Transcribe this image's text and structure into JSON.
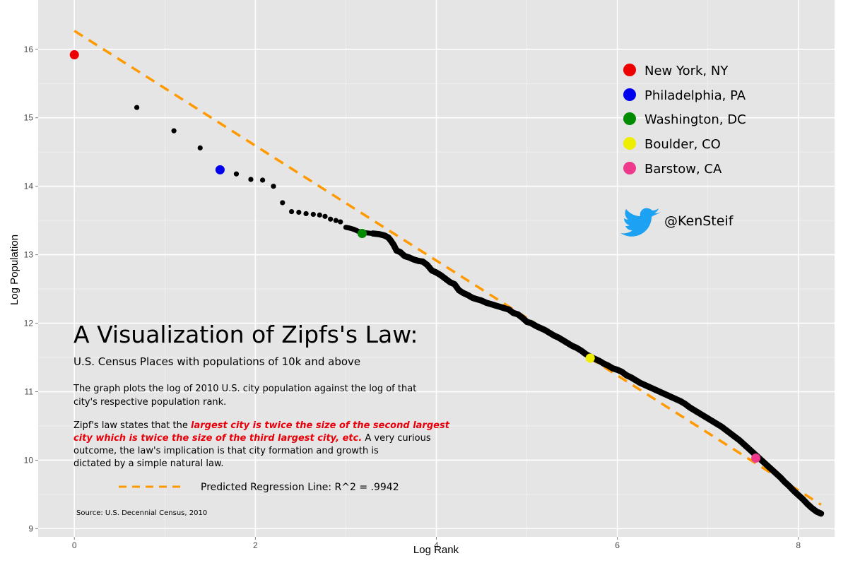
{
  "chart_data": {
    "type": "scatter",
    "xlabel": "Log Rank",
    "ylabel": "Log Population",
    "xlim": [
      -0.4,
      8.4
    ],
    "ylim": [
      8.88,
      16.72
    ],
    "x_ticks": [
      0,
      2,
      4,
      6,
      8
    ],
    "y_ticks": [
      9,
      10,
      11,
      12,
      13,
      14,
      15,
      16
    ],
    "grid": true,
    "background": "#e5e5e5",
    "point_color": "#000000",
    "regression": {
      "label": "Predicted Regression Line: R^2 = .9942",
      "color": "#ff9900",
      "style": "dashed",
      "x": [
        0,
        8.25
      ],
      "y": [
        16.27,
        9.35
      ]
    },
    "points": [
      [
        0.69,
        15.15
      ],
      [
        1.1,
        14.81
      ],
      [
        1.39,
        14.56
      ],
      [
        1.79,
        14.18
      ],
      [
        1.95,
        14.1
      ],
      [
        2.08,
        14.09
      ],
      [
        2.2,
        14.0
      ],
      [
        2.3,
        13.76
      ],
      [
        2.4,
        13.63
      ],
      [
        2.48,
        13.62
      ],
      [
        2.56,
        13.6
      ],
      [
        2.64,
        13.59
      ],
      [
        2.71,
        13.58
      ],
      [
        2.77,
        13.56
      ],
      [
        2.83,
        13.52
      ],
      [
        2.89,
        13.5
      ],
      [
        2.94,
        13.48
      ],
      [
        3.0,
        13.4
      ],
      [
        3.04,
        13.39
      ],
      [
        3.09,
        13.37
      ],
      [
        3.14,
        13.34
      ],
      [
        3.22,
        13.32
      ],
      [
        3.3,
        13.31
      ],
      [
        3.37,
        13.3
      ],
      [
        3.43,
        13.28
      ],
      [
        3.47,
        13.25
      ],
      [
        3.5,
        13.2
      ],
      [
        3.53,
        13.14
      ],
      [
        3.56,
        13.06
      ],
      [
        3.6,
        13.04
      ],
      [
        3.65,
        12.98
      ],
      [
        3.7,
        12.96
      ],
      [
        3.75,
        12.93
      ],
      [
        3.8,
        12.91
      ],
      [
        3.85,
        12.9
      ],
      [
        3.9,
        12.85
      ],
      [
        3.95,
        12.77
      ],
      [
        4.0,
        12.74
      ],
      [
        4.05,
        12.7
      ],
      [
        4.1,
        12.65
      ],
      [
        4.15,
        12.6
      ],
      [
        4.2,
        12.57
      ],
      [
        4.25,
        12.48
      ],
      [
        4.3,
        12.44
      ],
      [
        4.35,
        12.41
      ],
      [
        4.4,
        12.37
      ],
      [
        4.45,
        12.35
      ],
      [
        4.5,
        12.33
      ],
      [
        4.55,
        12.3
      ],
      [
        4.6,
        12.28
      ],
      [
        4.65,
        12.26
      ],
      [
        4.7,
        12.24
      ],
      [
        4.75,
        12.22
      ],
      [
        4.8,
        12.2
      ],
      [
        4.85,
        12.15
      ],
      [
        4.9,
        12.13
      ],
      [
        4.95,
        12.08
      ],
      [
        5.0,
        12.02
      ],
      [
        5.05,
        12.0
      ],
      [
        5.1,
        11.96
      ],
      [
        5.15,
        11.93
      ],
      [
        5.2,
        11.9
      ],
      [
        5.25,
        11.86
      ],
      [
        5.3,
        11.82
      ],
      [
        5.35,
        11.79
      ],
      [
        5.4,
        11.75
      ],
      [
        5.45,
        11.71
      ],
      [
        5.5,
        11.67
      ],
      [
        5.55,
        11.64
      ],
      [
        5.6,
        11.6
      ],
      [
        5.65,
        11.55
      ],
      [
        5.75,
        11.48
      ],
      [
        5.8,
        11.45
      ],
      [
        5.85,
        11.41
      ],
      [
        5.9,
        11.38
      ],
      [
        5.95,
        11.34
      ],
      [
        6.0,
        11.32
      ],
      [
        6.05,
        11.29
      ],
      [
        6.1,
        11.24
      ],
      [
        6.15,
        11.21
      ],
      [
        6.2,
        11.17
      ],
      [
        6.25,
        11.13
      ],
      [
        6.3,
        11.1
      ],
      [
        6.35,
        11.07
      ],
      [
        6.4,
        11.04
      ],
      [
        6.45,
        11.01
      ],
      [
        6.5,
        10.98
      ],
      [
        6.55,
        10.95
      ],
      [
        6.6,
        10.92
      ],
      [
        6.65,
        10.89
      ],
      [
        6.7,
        10.86
      ],
      [
        6.75,
        10.82
      ],
      [
        6.8,
        10.77
      ],
      [
        6.85,
        10.73
      ],
      [
        6.9,
        10.69
      ],
      [
        6.95,
        10.65
      ],
      [
        7.0,
        10.61
      ],
      [
        7.05,
        10.57
      ],
      [
        7.1,
        10.53
      ],
      [
        7.15,
        10.49
      ],
      [
        7.2,
        10.44
      ],
      [
        7.25,
        10.39
      ],
      [
        7.3,
        10.34
      ],
      [
        7.35,
        10.29
      ],
      [
        7.4,
        10.23
      ],
      [
        7.45,
        10.17
      ],
      [
        7.5,
        10.11
      ],
      [
        7.55,
        10.05
      ],
      [
        7.6,
        9.99
      ],
      [
        7.65,
        9.93
      ],
      [
        7.7,
        9.87
      ],
      [
        7.75,
        9.81
      ],
      [
        7.8,
        9.75
      ],
      [
        7.85,
        9.68
      ],
      [
        7.9,
        9.62
      ],
      [
        7.95,
        9.55
      ],
      [
        8.0,
        9.49
      ],
      [
        8.05,
        9.43
      ],
      [
        8.1,
        9.36
      ],
      [
        8.15,
        9.3
      ],
      [
        8.2,
        9.25
      ],
      [
        8.25,
        9.22
      ]
    ],
    "highlights": [
      {
        "name": "New York, NY",
        "x": 0.0,
        "y": 15.92,
        "color": "#ee0000"
      },
      {
        "name": "Philadelphia, PA",
        "x": 1.61,
        "y": 14.24,
        "color": "#0000ee"
      },
      {
        "name": "Washington, DC",
        "x": 3.18,
        "y": 13.31,
        "color": "#008b00"
      },
      {
        "name": "Boulder, CO",
        "x": 5.7,
        "y": 11.49,
        "color": "#eeee00"
      },
      {
        "name": "Barstow, CA",
        "x": 7.53,
        "y": 10.03,
        "color": "#ee3a8c"
      }
    ],
    "legend_position": "top-right"
  },
  "twitter": {
    "handle": "@KenSteif",
    "icon": "twitter-bird-icon",
    "color": "#1da1f2"
  },
  "overlay": {
    "title": "A Visualization of Zipfs's Law:",
    "subtitle": "U.S. Census Places with populations of 10k and above",
    "para1_line1": "The graph plots the log of 2010 U.S. city population against the log of that",
    "para1_line2": "city's respective population rank.",
    "para2_l1_plain": "Zipf's law states that the ",
    "para2_l1_em": "largest city is twice the size of the second largest",
    "para2_l2_em": "city which is twice the size of the third largest city, etc.",
    "para2_l2_plain": " A very curious",
    "para2_l3": "outcome, the law's implication is that city formation and growth is",
    "para2_l4": "dictated by a simple natural law.",
    "source": "Source: U.S. Decennial Census, 2010"
  }
}
